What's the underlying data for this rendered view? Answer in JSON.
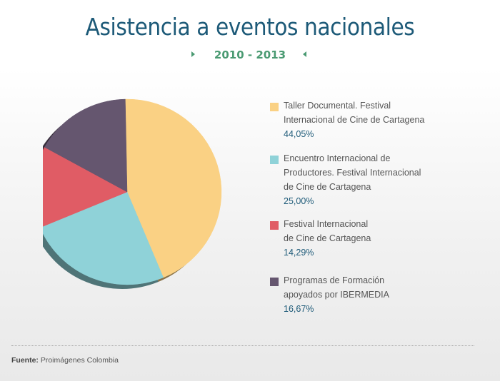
{
  "title": "Asistencia a eventos nacionales",
  "subtitle": "2010 - 2013",
  "source_label": "Fuente:",
  "source_value": "Proimágenes Colombia",
  "chart_data": {
    "type": "pie",
    "title": "Asistencia a eventos nacionales",
    "subtitle": "2010 - 2013",
    "slices": [
      {
        "label": "Taller Documental. Festival Internacional de Cine de Cartagena",
        "value": 44.05,
        "display": "44,05%",
        "color": "#fad184"
      },
      {
        "label": "Encuentro Internacional de Productores. Festival Internacional de Cine de Cartagena",
        "value": 25.0,
        "display": "25,00%",
        "color": "#8fd2d8"
      },
      {
        "label": "Festival Internacional de Cine de Cartagena",
        "value": 14.29,
        "display": "14,29%",
        "color": "#e05c65"
      },
      {
        "label": "Programas de Formación apoyados por IBERMEDIA",
        "value": 16.67,
        "display": "16,67%",
        "color": "#65566f"
      }
    ],
    "legend_position": "right"
  },
  "legend": [
    {
      "line1": "Taller Documental. Festival",
      "line2": "Internacional de Cine de Cartagena",
      "line3": "",
      "pct": "44,05%",
      "color": "#fad184"
    },
    {
      "line1": "Encuentro Internacional de",
      "line2": "Productores. Festival Internacional",
      "line3": "de Cine de Cartagena",
      "pct": "25,00%",
      "color": "#8fd2d8"
    },
    {
      "line1": "Festival Internacional",
      "line2": "de Cine de Cartagena",
      "line3": "",
      "pct": "14,29%",
      "color": "#e05c65"
    },
    {
      "line1": "Programas de Formación",
      "line2": "apoyados por IBERMEDIA",
      "line3": "",
      "pct": "16,67%",
      "color": "#65566f"
    }
  ]
}
